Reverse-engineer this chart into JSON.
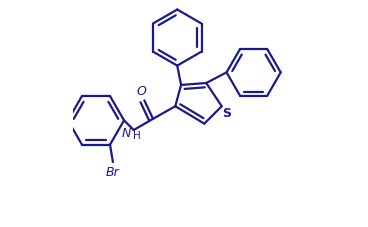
{
  "bg_color": "#ffffff",
  "line_color": "#1a1a8c",
  "lw": 1.6,
  "figsize": [
    3.68,
    2.28
  ],
  "dpi": 100,
  "xlim": [
    -0.15,
    1.0
  ],
  "ylim": [
    -0.15,
    1.0
  ]
}
